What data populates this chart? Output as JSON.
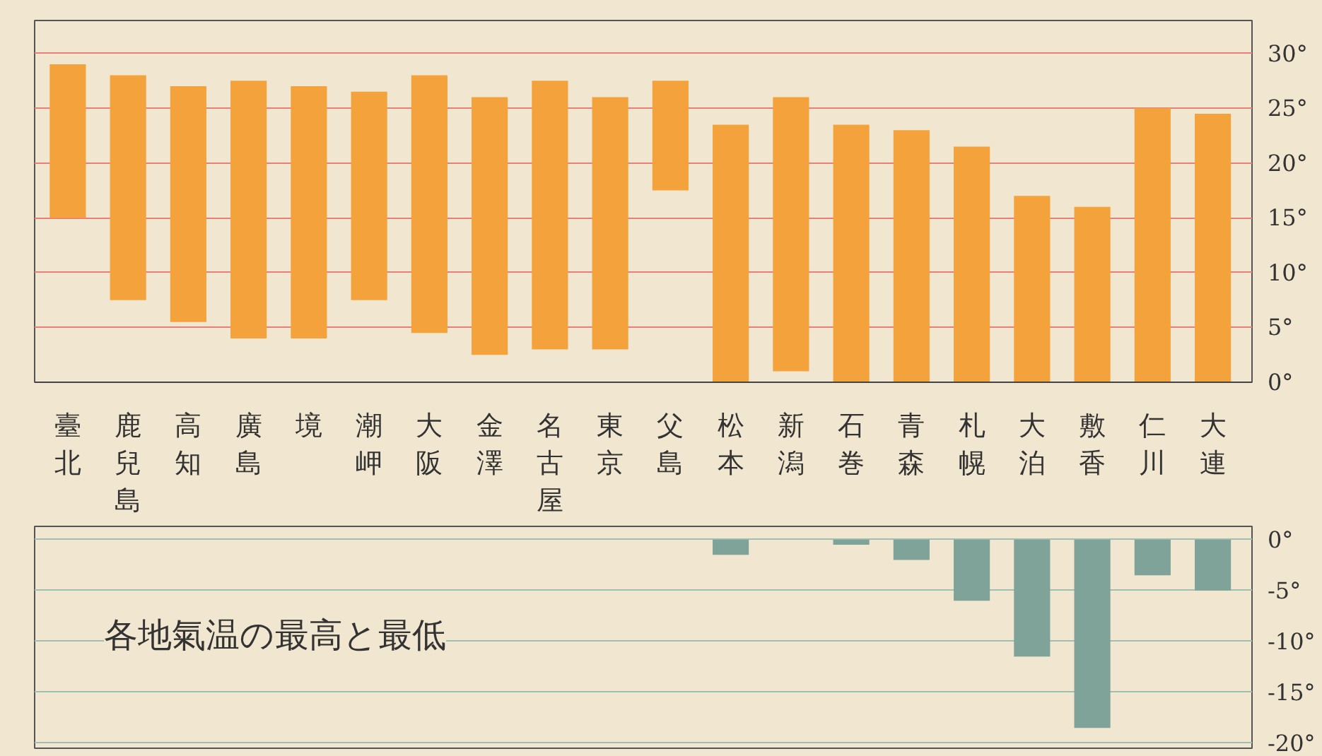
{
  "chart_data": [
    {
      "type": "bar",
      "categories": [
        "臺北",
        "鹿兒島",
        "高知",
        "廣島",
        "境",
        "潮岬",
        "大阪",
        "金澤",
        "名古屋",
        "東京",
        "父島",
        "松本",
        "新潟",
        "石巻",
        "青森",
        "札幌",
        "大泊",
        "敷香",
        "仁川",
        "大連"
      ],
      "base": [
        15,
        7.5,
        5.5,
        4,
        4,
        7.5,
        4.5,
        2.5,
        3,
        3,
        17.5,
        0,
        1,
        0,
        0,
        0,
        0,
        0,
        0,
        0
      ],
      "values": [
        14,
        20.5,
        21.5,
        23.5,
        23,
        19,
        23.5,
        23.5,
        24.5,
        23,
        10,
        23.5,
        25,
        23.5,
        23,
        21.5,
        17,
        16,
        25,
        24.5
      ],
      "color": "#f4a23c",
      "ylim": [
        0,
        33
      ],
      "yticks": [
        {
          "value": 0,
          "label": "0°"
        },
        {
          "value": 5,
          "label": "5°"
        },
        {
          "value": 10,
          "label": "10°"
        },
        {
          "value": 15,
          "label": "15°"
        },
        {
          "value": 20,
          "label": "20°"
        },
        {
          "value": 25,
          "label": "25°"
        },
        {
          "value": 30,
          "label": "30°"
        }
      ],
      "grid": "y"
    },
    {
      "type": "bar",
      "title": "各地氣温の最高と最低",
      "categories": [
        "臺北",
        "鹿兒島",
        "高知",
        "廣島",
        "境",
        "潮岬",
        "大阪",
        "金澤",
        "名古屋",
        "東京",
        "父島",
        "松本",
        "新潟",
        "石巻",
        "青森",
        "札幌",
        "大泊",
        "敷香",
        "仁川",
        "大連"
      ],
      "values": [
        null,
        null,
        null,
        null,
        null,
        null,
        null,
        null,
        null,
        null,
        null,
        -1.5,
        null,
        -0.5,
        -2,
        -6,
        -11.5,
        -18.5,
        -3.5,
        -5
      ],
      "color": "#7fa398",
      "ylim": [
        -20.5,
        1.3
      ],
      "yticks": [
        {
          "value": 0,
          "label": "0°"
        },
        {
          "value": -5,
          "label": "-5°"
        },
        {
          "value": -10,
          "label": "-10°"
        },
        {
          "value": -15,
          "label": "-15°"
        },
        {
          "value": -20,
          "label": "-20°"
        }
      ],
      "grid": "y",
      "tick_labels": "y"
    }
  ]
}
